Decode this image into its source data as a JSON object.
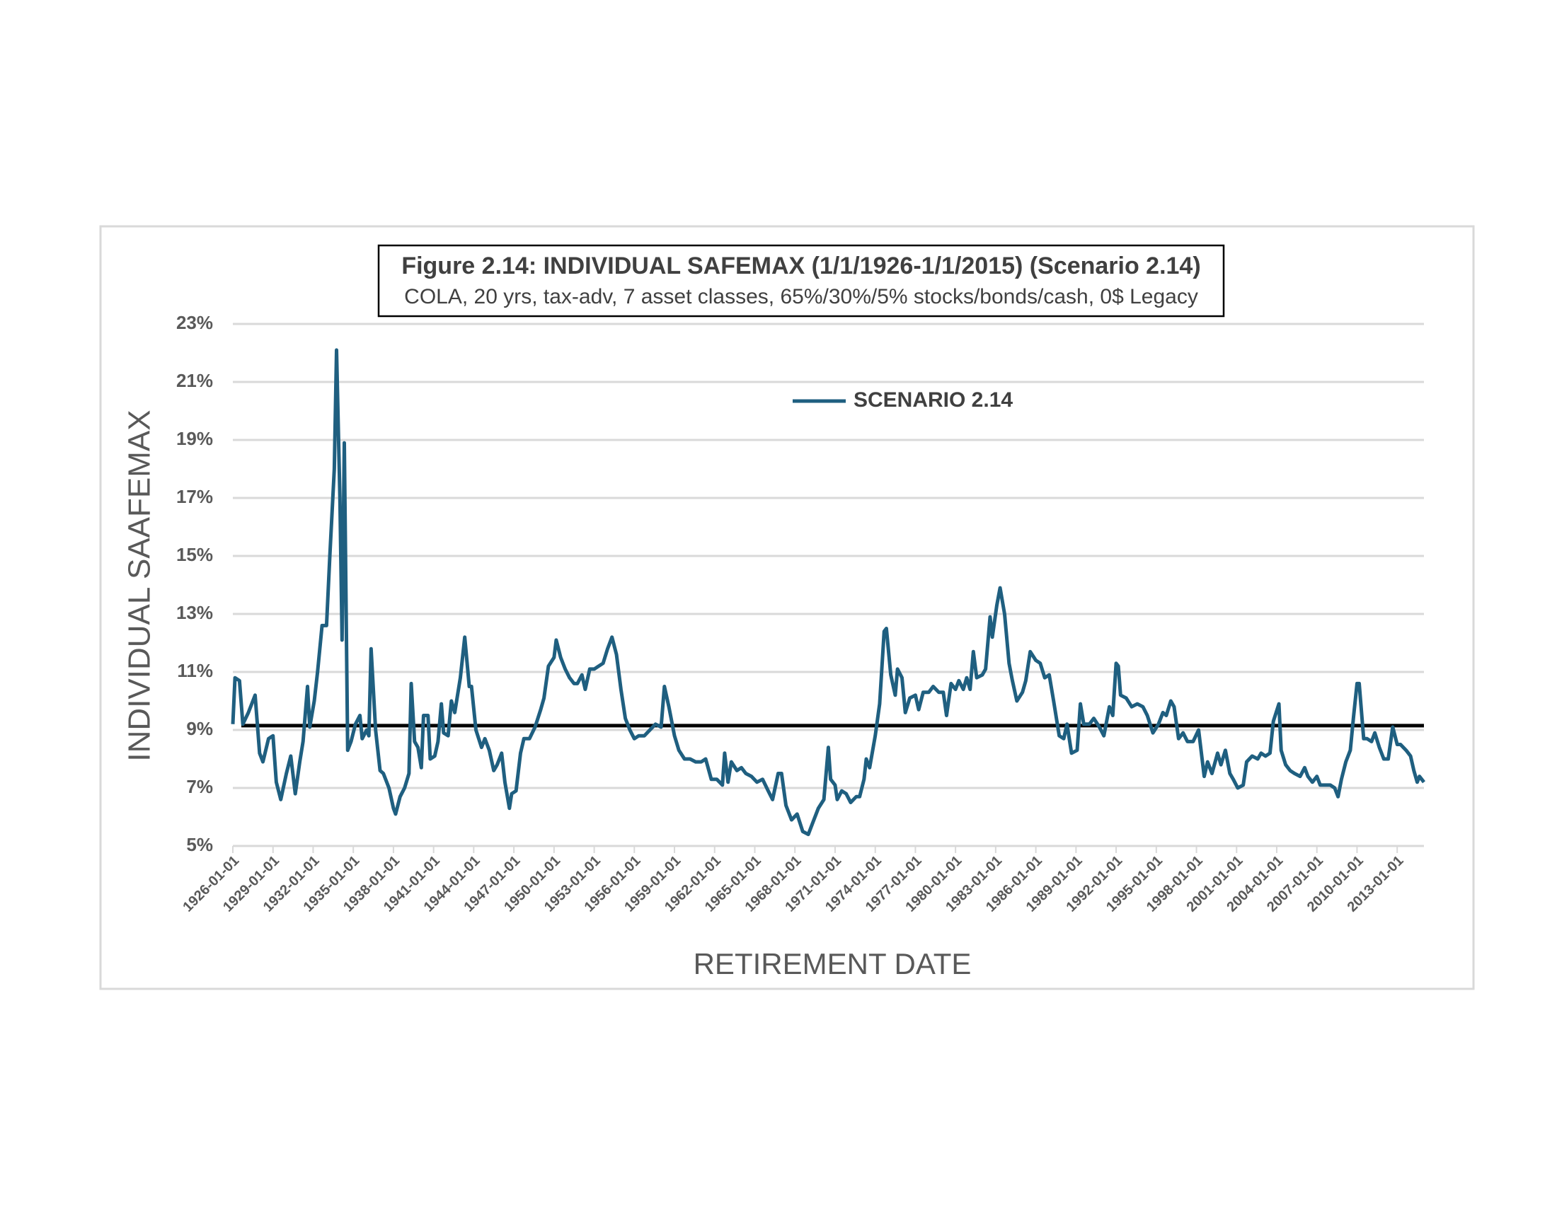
{
  "chart_data": {
    "type": "line",
    "title": "Figure 2.14: INDIVIDUAL SAFEMAX (1/1/1926-1/1/2015) (Scenario 2.14)",
    "subtitle": "COLA, 20 yrs, tax-adv, 7 asset classes, 65%/30%/5% stocks/bonds/cash, 0$ Legacy",
    "y_label": "INDIVIDUAL SAAFEMAX",
    "x_label": "RETIREMENT DATE",
    "legend": "top-center",
    "grid": true,
    "ylim": [
      5,
      23
    ],
    "yticks": [
      {
        "value": 5,
        "label": "5%"
      },
      {
        "value": 7,
        "label": "7%"
      },
      {
        "value": 9,
        "label": "9%"
      },
      {
        "value": 11,
        "label": "11%"
      },
      {
        "value": 13,
        "label": "13%"
      },
      {
        "value": 15,
        "label": "15%"
      },
      {
        "value": 17,
        "label": "17%"
      },
      {
        "value": 19,
        "label": "19%"
      },
      {
        "value": 21,
        "label": "21%"
      },
      {
        "value": 23,
        "label": "23%"
      }
    ],
    "xlim": [
      "1926-01-01",
      "2015-01-01"
    ],
    "xticks": [
      "1926-01-01",
      "1929-01-01",
      "1932-01-01",
      "1935-01-01",
      "1938-01-01",
      "1941-01-01",
      "1944-01-01",
      "1947-01-01",
      "1950-01-01",
      "1953-01-01",
      "1956-01-01",
      "1959-01-01",
      "1962-01-01",
      "1965-01-01",
      "1968-01-01",
      "1971-01-01",
      "1974-01-01",
      "1977-01-01",
      "1980-01-01",
      "1983-01-01",
      "1986-01-01",
      "1989-01-01",
      "1992-01-01",
      "1995-01-01",
      "1998-01-01",
      "2001-01-01",
      "2004-01-01",
      "2007-01-01",
      "2010-01-01",
      "2013-01-01"
    ],
    "hline": {
      "value": 9.15,
      "color": "#000000"
    },
    "x": [
      "1926-01-01",
      "1926-03-01",
      "1926-07-01",
      "1926-10-01",
      "1927-03-01",
      "1927-09-01",
      "1928-01-01",
      "1928-04-01",
      "1928-09-01",
      "1929-01-01",
      "1929-04-01",
      "1929-08-01",
      "1930-01-01",
      "1930-05-01",
      "1930-09-01",
      "1931-01-01",
      "1931-04-01",
      "1931-08-01",
      "1931-10-01",
      "1932-02-01",
      "1932-05-01",
      "1932-09-01",
      "1933-01-01",
      "1933-04-01",
      "1933-08-01",
      "1933-10-01",
      "1934-01-01",
      "1934-03-01",
      "1934-05-01",
      "1934-08-01",
      "1934-11-01",
      "1935-03-01",
      "1935-07-01",
      "1935-09-01",
      "1936-01-01",
      "1936-03-01",
      "1936-05-01",
      "1936-09-01",
      "1937-01-01",
      "1937-04-01",
      "1937-09-01",
      "1938-01-01",
      "1938-03-01",
      "1938-07-01",
      "1938-11-01",
      "1939-03-01",
      "1939-05-01",
      "1939-08-01",
      "1939-11-01",
      "1940-02-01",
      "1940-04-01",
      "1940-08-01",
      "1940-10-01",
      "1941-02-01",
      "1941-05-01",
      "1941-08-01",
      "1941-10-01",
      "1942-02-01",
      "1942-05-01",
      "1942-08-01",
      "1943-01-01",
      "1943-05-01",
      "1943-09-01",
      "1943-11-01",
      "1944-03-01",
      "1944-08-01",
      "1944-11-01",
      "1945-03-01",
      "1945-07-01",
      "1945-10-01",
      "1946-02-01",
      "1946-05-01",
      "1946-09-01",
      "1946-11-01",
      "1947-03-01",
      "1947-07-01",
      "1947-10-01",
      "1948-03-01",
      "1948-08-01",
      "1949-01-01",
      "1949-04-01",
      "1949-08-01",
      "1950-01-01",
      "1950-03-01",
      "1950-07-01",
      "1950-11-01",
      "1951-03-01",
      "1951-07-01",
      "1951-10-01",
      "1952-02-01",
      "1952-05-01",
      "1952-09-01",
      "1953-01-01",
      "1953-05-01",
      "1953-09-01",
      "1954-01-01",
      "1954-05-01",
      "1954-09-01",
      "1955-01-01",
      "1955-05-01",
      "1955-09-01",
      "1956-01-01",
      "1956-05-01",
      "1956-10-01",
      "1957-03-01",
      "1957-08-01",
      "1958-01-01",
      "1958-04-01",
      "1958-08-01",
      "1959-01-01",
      "1959-05-01",
      "1959-10-01",
      "1960-03-01",
      "1960-08-01",
      "1961-01-01",
      "1961-05-01",
      "1961-10-01",
      "1962-03-01",
      "1962-08-01",
      "1962-10-01",
      "1963-01-01",
      "1963-04-01",
      "1963-09-01",
      "1964-01-01",
      "1964-05-01",
      "1964-10-01",
      "1965-03-01",
      "1965-08-01",
      "1966-01-01",
      "1966-05-01",
      "1966-10-01",
      "1967-01-01",
      "1967-05-01",
      "1967-10-01",
      "1968-03-01",
      "1968-08-01",
      "1969-01-01",
      "1969-05-01",
      "1969-10-01",
      "1970-03-01",
      "1970-07-01",
      "1970-09-01",
      "1971-01-01",
      "1971-03-01",
      "1971-07-01",
      "1971-11-01",
      "1972-03-01",
      "1972-08-01",
      "1972-11-01",
      "1973-03-01",
      "1973-05-01",
      "1973-08-01",
      "1974-01-01",
      "1974-05-01",
      "1974-09-01",
      "1974-11-01",
      "1975-03-01",
      "1975-07-01",
      "1975-09-01",
      "1976-01-01",
      "1976-04-01",
      "1976-08-01",
      "1977-01-01",
      "1977-04-01",
      "1977-08-01",
      "1978-01-01",
      "1978-05-01",
      "1978-10-01",
      "1979-02-01",
      "1979-05-01",
      "1979-09-01",
      "1980-01-01",
      "1980-04-01",
      "1980-08-01",
      "1980-11-01",
      "1981-02-01",
      "1981-05-01",
      "1981-08-01",
      "1982-01-01",
      "1982-04-01",
      "1982-08-01",
      "1982-10-01",
      "1983-02-01",
      "1983-05-01",
      "1983-09-01",
      "1984-01-01",
      "1984-04-01",
      "1984-08-01",
      "1985-01-01",
      "1985-04-01",
      "1985-08-01",
      "1986-01-01",
      "1986-05-01",
      "1986-09-01",
      "1987-01-01",
      "1987-05-01",
      "1987-10-01",
      "1988-02-01",
      "1988-05-01",
      "1988-09-01",
      "1989-02-01",
      "1989-05-01",
      "1989-08-01",
      "1990-01-01",
      "1990-05-01",
      "1990-10-01",
      "1991-02-01",
      "1991-07-01",
      "1991-10-01",
      "1992-01-01",
      "1992-03-01",
      "1992-05-01",
      "1992-10-01",
      "1993-03-01",
      "1993-08-01",
      "1994-01-01",
      "1994-05-01",
      "1994-10-01",
      "1995-03-01",
      "1995-07-01",
      "1995-10-01",
      "1996-02-01",
      "1996-05-01",
      "1996-09-01",
      "1997-01-01",
      "1997-05-01",
      "1997-10-01",
      "1998-03-01",
      "1998-08-01",
      "1998-11-01",
      "1999-03-01",
      "1999-08-01",
      "1999-11-01",
      "2000-03-01",
      "2000-07-01",
      "2000-10-01",
      "2001-02-01",
      "2001-07-01",
      "2001-10-01",
      "2002-03-01",
      "2002-08-01",
      "2002-11-01",
      "2003-03-01",
      "2003-07-01",
      "2003-10-01",
      "2004-03-01",
      "2004-05-01",
      "2004-09-01",
      "2005-01-01",
      "2005-05-01",
      "2005-10-01",
      "2006-02-01",
      "2006-05-01",
      "2006-09-01",
      "2007-01-01",
      "2007-04-01",
      "2007-09-01",
      "2008-01-01",
      "2008-05-01",
      "2008-08-01",
      "2008-11-01",
      "2009-03-01",
      "2009-07-01",
      "2009-10-01",
      "2010-01-01",
      "2010-03-01",
      "2010-07-01",
      "2010-10-01",
      "2011-02-01",
      "2011-05-01",
      "2011-09-01",
      "2012-01-01",
      "2012-05-01",
      "2012-09-01",
      "2013-01-01",
      "2013-04-01",
      "2013-09-01",
      "2014-01-01",
      "2014-04-01",
      "2014-07-01",
      "2014-09-01",
      "2014-11-01",
      "2015-01-01"
    ],
    "series": [
      {
        "name": "SCENARIO 2.14",
        "color": "#1f5f80",
        "values": [
          9.2,
          10.8,
          10.7,
          9.2,
          9.6,
          10.2,
          8.2,
          7.9,
          8.7,
          8.8,
          7.2,
          6.6,
          7.5,
          8.1,
          6.8,
          7.9,
          8.6,
          10.5,
          9.1,
          10.0,
          11.0,
          12.6,
          12.6,
          15.0,
          18.0,
          22.1,
          17.0,
          12.1,
          18.9,
          8.3,
          8.6,
          9.2,
          9.5,
          8.7,
          9.0,
          8.8,
          11.8,
          9.0,
          7.6,
          7.5,
          7.0,
          6.3,
          6.1,
          6.7,
          7.0,
          7.5,
          10.6,
          8.6,
          8.4,
          7.7,
          9.5,
          9.5,
          8.0,
          8.1,
          8.6,
          9.9,
          8.9,
          8.8,
          10.0,
          9.6,
          10.8,
          12.2,
          10.5,
          10.5,
          9.0,
          8.4,
          8.7,
          8.3,
          7.6,
          7.8,
          8.2,
          7.2,
          6.3,
          6.8,
          6.9,
          8.2,
          8.7,
          8.7,
          9.1,
          9.7,
          10.1,
          11.2,
          11.5,
          12.1,
          11.5,
          11.1,
          10.8,
          10.6,
          10.6,
          10.9,
          10.4,
          11.1,
          11.1,
          11.2,
          11.3,
          11.8,
          12.2,
          11.6,
          10.4,
          9.4,
          9.0,
          8.7,
          8.8,
          8.8,
          9.0,
          9.2,
          9.1,
          10.5,
          9.8,
          8.8,
          8.3,
          8.0,
          8.0,
          7.9,
          7.9,
          8.0,
          7.3,
          7.3,
          7.1,
          8.2,
          7.2,
          7.9,
          7.6,
          7.7,
          7.5,
          7.4,
          7.2,
          7.3,
          6.9,
          6.6,
          7.5,
          7.5,
          6.4,
          5.9,
          6.1,
          5.5,
          5.4,
          5.8,
          6.3,
          6.6,
          8.4,
          7.3,
          7.1,
          6.6,
          6.9,
          6.8,
          6.5,
          6.7,
          6.7,
          7.3,
          8.0,
          7.7,
          8.8,
          9.9,
          12.4,
          12.5,
          10.9,
          10.2,
          11.1,
          10.8,
          9.6,
          10.1,
          10.2,
          9.7,
          10.3,
          10.3,
          10.5,
          10.3,
          10.3,
          9.5,
          10.6,
          10.4,
          10.7,
          10.4,
          10.8,
          10.4,
          11.7,
          10.8,
          10.9,
          11.1,
          12.9,
          12.2,
          13.3,
          13.9,
          13.0,
          11.3,
          10.7,
          10.0,
          10.3,
          10.7,
          11.7,
          11.4,
          11.3,
          10.8,
          10.9,
          10.0,
          8.8,
          8.7,
          9.2,
          8.2,
          8.3,
          9.9,
          9.2,
          9.2,
          9.4,
          9.1,
          8.8,
          9.8,
          9.5,
          11.3,
          11.2,
          10.2,
          10.1,
          9.8,
          9.9,
          9.8,
          9.5,
          8.9,
          9.2,
          9.6,
          9.5,
          10.0,
          9.8,
          8.7,
          8.9,
          8.6,
          8.6,
          9.0,
          7.4,
          7.9,
          7.5,
          8.2,
          7.8,
          8.3,
          7.5,
          7.3,
          7.0,
          7.1,
          7.9,
          8.1,
          8.0,
          8.2,
          8.1,
          8.2,
          9.3,
          9.9,
          8.3,
          7.8,
          7.6,
          7.5,
          7.4,
          7.7,
          7.4,
          7.2,
          7.4,
          7.1,
          7.1,
          7.1,
          7.0,
          6.7,
          7.3,
          7.9,
          8.3,
          9.5,
          10.6,
          10.6,
          8.7,
          8.7,
          8.6,
          8.9,
          8.4,
          8.0,
          8.0,
          9.1,
          8.5,
          8.5,
          8.3,
          8.1,
          7.6,
          7.2,
          7.4,
          7.3,
          7.2
        ]
      }
    ]
  }
}
